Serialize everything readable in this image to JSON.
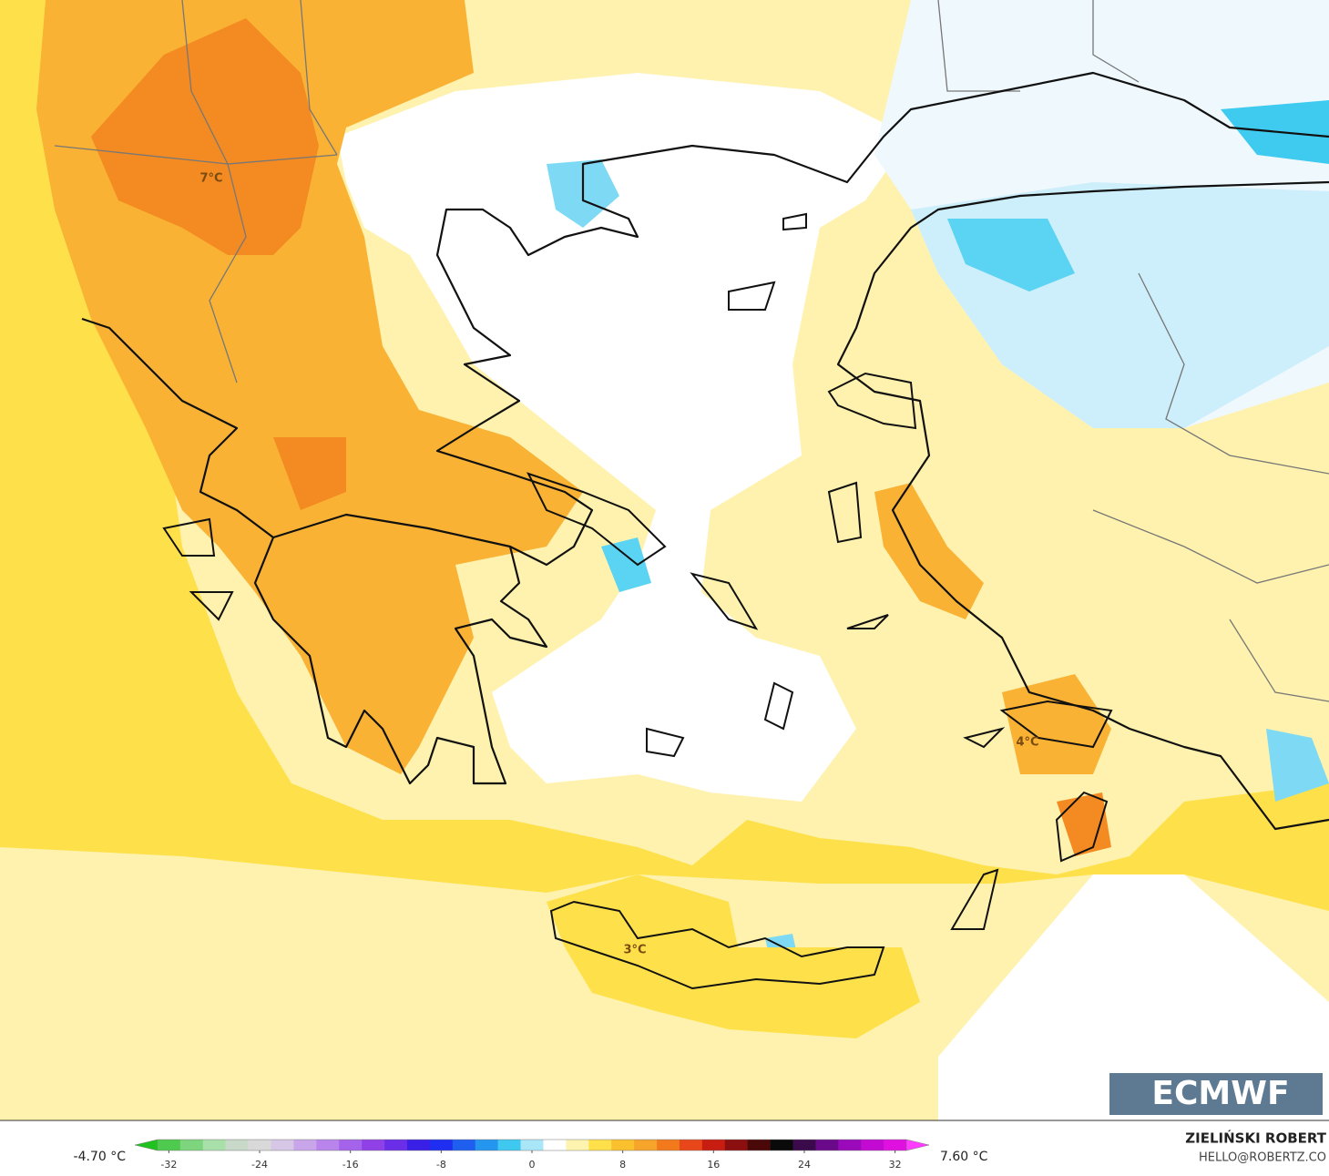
{
  "map_labels": [
    "7°C",
    "4°C",
    "3°C"
  ],
  "logo": "ECMWF",
  "credit": {
    "author": "ZIELIŃSKI ROBERT",
    "contact": "HELLO@ROBERTZ.CO"
  },
  "colorbar": {
    "min_label": "-4.70 °C",
    "max_label": "7.60 °C",
    "lim": [
      -35,
      35
    ],
    "ticks": [
      -32,
      -24,
      -16,
      -8,
      0,
      8,
      16,
      24,
      32
    ],
    "colors": [
      "#1fc21f",
      "#4ecb4e",
      "#7dd67d",
      "#a9e0a9",
      "#c9d9c9",
      "#d9d9d9",
      "#d6c7e6",
      "#c9a6ea",
      "#b985ec",
      "#a463ea",
      "#8f40e6",
      "#6a2ee8",
      "#3a1fe6",
      "#1f2ef0",
      "#1f5ff0",
      "#2596f0",
      "#3fc9f0",
      "#a8e6f8",
      "#ffffff",
      "#fff3b0",
      "#ffe04a",
      "#fbc02d",
      "#f7a42a",
      "#f27a1d",
      "#e8471a",
      "#c81e12",
      "#8b0f0f",
      "#4a0808",
      "#0a0a0a",
      "#3a0a4a",
      "#6a0a8a",
      "#9a0aba",
      "#c20ad2",
      "#e010e0",
      "#ff3cff"
    ]
  }
}
